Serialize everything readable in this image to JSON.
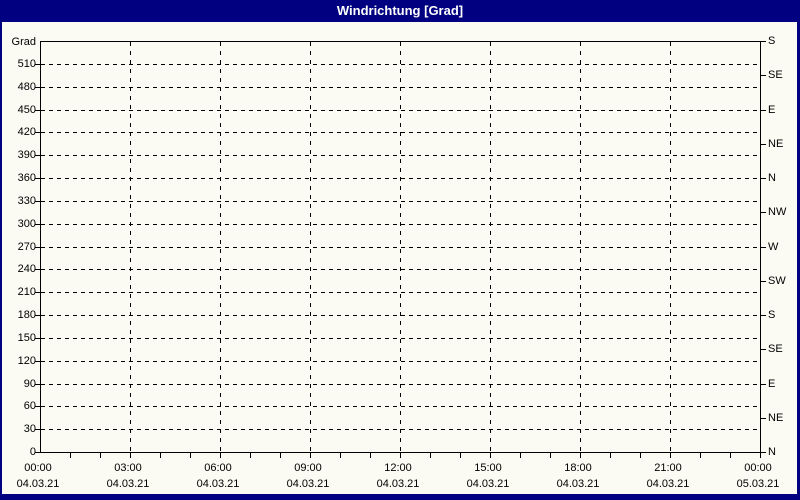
{
  "title": "Windrichtung [Grad]",
  "colors": {
    "frame": "#000080",
    "titlebar_bg": "#000080",
    "titlebar_text": "#ffffff",
    "background": "#fbfbf3",
    "axis": "#000000",
    "grid": "#000000",
    "label_text": "#000000"
  },
  "axes": {
    "y_left": {
      "unit": "Grad",
      "tick_values": [
        510,
        480,
        450,
        420,
        390,
        360,
        330,
        300,
        270,
        240,
        210,
        180,
        150,
        120,
        90,
        60,
        30,
        0
      ],
      "min": 0,
      "max": 540,
      "grid_step": 30
    },
    "y_right": {
      "ticks": [
        {
          "deg": 540,
          "label": "S"
        },
        {
          "deg": 495,
          "label": "SE"
        },
        {
          "deg": 450,
          "label": "E"
        },
        {
          "deg": 405,
          "label": "NE"
        },
        {
          "deg": 360,
          "label": "N"
        },
        {
          "deg": 315,
          "label": "NW"
        },
        {
          "deg": 270,
          "label": "W"
        },
        {
          "deg": 225,
          "label": "SW"
        },
        {
          "deg": 180,
          "label": "S"
        },
        {
          "deg": 135,
          "label": "SE"
        },
        {
          "deg": 90,
          "label": "E"
        },
        {
          "deg": 45,
          "label": "NE"
        },
        {
          "deg": 0,
          "label": "N"
        }
      ]
    },
    "x": {
      "ticks": [
        {
          "hour": 0,
          "time": "00:00",
          "date": "04.03.21"
        },
        {
          "hour": 3,
          "time": "03:00",
          "date": "04.03.21"
        },
        {
          "hour": 6,
          "time": "06:00",
          "date": "04.03.21"
        },
        {
          "hour": 9,
          "time": "09:00",
          "date": "04.03.21"
        },
        {
          "hour": 12,
          "time": "12:00",
          "date": "04.03.21"
        },
        {
          "hour": 15,
          "time": "15:00",
          "date": "04.03.21"
        },
        {
          "hour": 18,
          "time": "18:00",
          "date": "04.03.21"
        },
        {
          "hour": 21,
          "time": "21:00",
          "date": "04.03.21"
        },
        {
          "hour": 24,
          "time": "00:00",
          "date": "05.03.21"
        }
      ],
      "minor_tick_every_hours": 1,
      "hours_total": 24
    }
  },
  "chart_data": {
    "type": "line",
    "title": "Windrichtung [Grad]",
    "xlabel": "",
    "ylabel": "Grad",
    "ylim": [
      0,
      540
    ],
    "y_tick_step": 30,
    "y_right_compass_labels": [
      "S",
      "SE",
      "E",
      "NE",
      "N",
      "NW",
      "W",
      "SW",
      "S",
      "SE",
      "E",
      "NE",
      "N"
    ],
    "y_right_compass_degrees": [
      540,
      495,
      450,
      405,
      360,
      315,
      270,
      225,
      180,
      135,
      90,
      45,
      0
    ],
    "x_tick_labels": [
      "00:00 04.03.21",
      "03:00 04.03.21",
      "06:00 04.03.21",
      "09:00 04.03.21",
      "12:00 04.03.21",
      "15:00 04.03.21",
      "18:00 04.03.21",
      "21:00 04.03.21",
      "00:00 05.03.21"
    ],
    "grid": true,
    "grid_style": "dashed",
    "legend_position": "none",
    "series": []
  }
}
